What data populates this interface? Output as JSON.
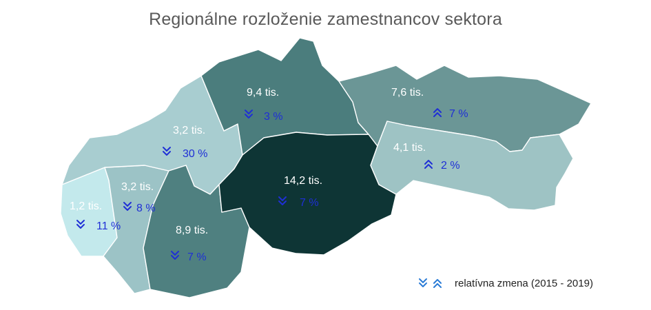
{
  "title": "Regionálne rozloženie zamestnancov sektora",
  "regions": [
    {
      "id": "ba",
      "employees": "1,2 tis.",
      "direction": "down",
      "change": "11 %",
      "fill": "#c3e9ec"
    },
    {
      "id": "tt",
      "employees": "3,2 tis.",
      "direction": "down",
      "change": "8 %",
      "fill": "#9cc3c6"
    },
    {
      "id": "tn",
      "employees": "3,2 tis.",
      "direction": "down",
      "change": "30 %",
      "fill": "#a8cdd0"
    },
    {
      "id": "nr",
      "employees": "8,9 tis.",
      "direction": "down",
      "change": "7 %",
      "fill": "#4f8080"
    },
    {
      "id": "za",
      "employees": "9,4 tis.",
      "direction": "down",
      "change": "3 %",
      "fill": "#4b7d7d"
    },
    {
      "id": "bb",
      "employees": "14,2 tis.",
      "direction": "down",
      "change": "7 %",
      "fill": "#0e3535"
    },
    {
      "id": "po",
      "employees": "7,6 tis.",
      "direction": "up",
      "change": "7 %",
      "fill": "#6b9696"
    },
    {
      "id": "ke",
      "employees": "4,1 tis.",
      "direction": "up",
      "change": "2 %",
      "fill": "#9ec3c4"
    }
  ],
  "legend": {
    "label": "relatívna zmena  (2015 - 2019)"
  },
  "colors": {
    "change_text": "#1f2fd6",
    "title": "#595959"
  }
}
